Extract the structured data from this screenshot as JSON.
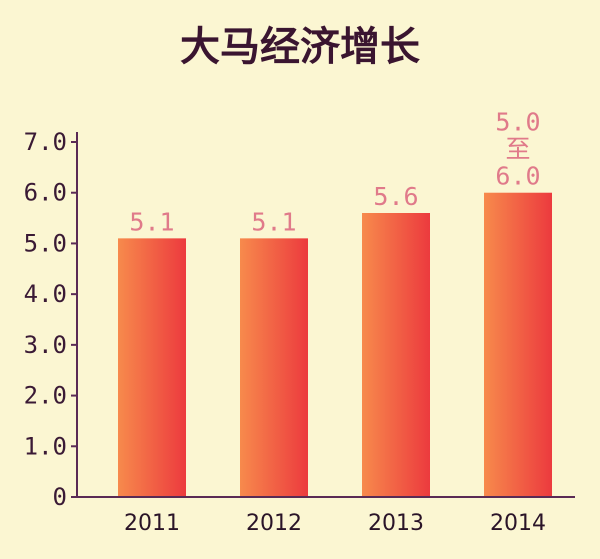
{
  "chart_data": {
    "type": "bar",
    "title": "大马经济增长",
    "categories": [
      "2011",
      "2012",
      "2013",
      "2014"
    ],
    "values": [
      5.1,
      5.1,
      5.6,
      6.0
    ],
    "data_labels": [
      [
        "5.1"
      ],
      [
        "5.1"
      ],
      [
        "5.6"
      ],
      [
        "5.0",
        "至",
        "6.0"
      ]
    ],
    "y_ticks": [
      "0",
      "1.0",
      "2.0",
      "3.0",
      "4.0",
      "5.0",
      "6.0",
      "7.0"
    ],
    "ylim": [
      0,
      7
    ],
    "xlabel": "",
    "ylabel": "",
    "grid": false,
    "colors": {
      "bar_light": "#f78a4c",
      "bar_dark": "#ec3a3e",
      "label": "#e07a8a",
      "axis": "#5a2a55",
      "background": "#fbf6d2"
    }
  }
}
